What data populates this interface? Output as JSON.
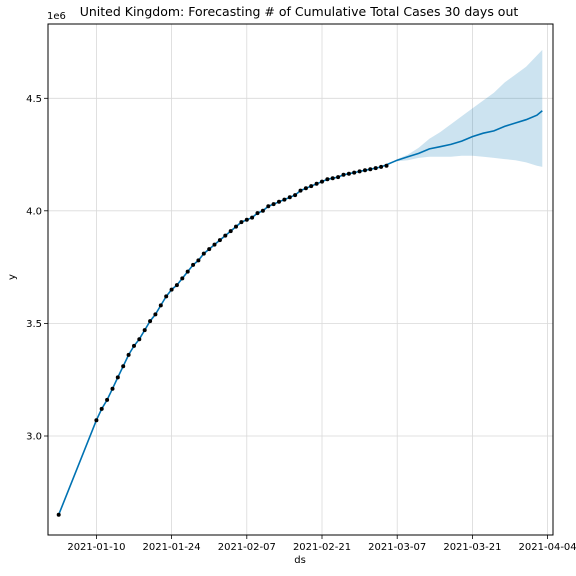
{
  "chart_data": {
    "type": "line",
    "title": "United Kingdom: Forecasting # of Cumulative Total Cases 30 days out",
    "xlabel": "ds",
    "ylabel": "y",
    "y_offset_label": "1e6",
    "grid": true,
    "x_range": [
      "2021-01-01",
      "2021-04-05"
    ],
    "ylim": [
      2.56,
      4.83
    ],
    "x_ticks": [
      "2021-01-10",
      "2021-01-24",
      "2021-02-07",
      "2021-02-21",
      "2021-03-07",
      "2021-03-21",
      "2021-04-04"
    ],
    "y_ticks": [
      {
        "value": 3.0,
        "label": "3.0"
      },
      {
        "value": 3.5,
        "label": "3.5"
      },
      {
        "value": 4.0,
        "label": "4.0"
      },
      {
        "value": 4.5,
        "label": "4.5"
      }
    ],
    "colors": {
      "line": "#0072b2",
      "interval": "#0072b2",
      "points": "#000000",
      "grid": "#d9d9d9"
    },
    "series": [
      {
        "kind": "observed",
        "x": [
          "2021-01-03",
          "2021-01-10",
          "2021-01-11",
          "2021-01-12",
          "2021-01-13",
          "2021-01-14",
          "2021-01-15",
          "2021-01-16",
          "2021-01-17",
          "2021-01-18",
          "2021-01-19",
          "2021-01-20",
          "2021-01-21",
          "2021-01-22",
          "2021-01-23",
          "2021-01-24",
          "2021-01-25",
          "2021-01-26",
          "2021-01-27",
          "2021-01-28",
          "2021-01-29",
          "2021-01-30",
          "2021-01-31",
          "2021-02-01",
          "2021-02-02",
          "2021-02-03",
          "2021-02-04",
          "2021-02-05",
          "2021-02-06",
          "2021-02-07",
          "2021-02-08",
          "2021-02-09",
          "2021-02-10",
          "2021-02-11",
          "2021-02-12",
          "2021-02-13",
          "2021-02-14",
          "2021-02-15",
          "2021-02-16",
          "2021-02-17",
          "2021-02-18",
          "2021-02-19",
          "2021-02-20",
          "2021-02-21",
          "2021-02-22",
          "2021-02-23",
          "2021-02-24",
          "2021-02-25",
          "2021-02-26",
          "2021-02-27",
          "2021-02-28",
          "2021-03-01",
          "2021-03-02",
          "2021-03-03",
          "2021-03-04",
          "2021-03-05"
        ],
        "y": [
          2.65,
          3.07,
          3.12,
          3.16,
          3.21,
          3.26,
          3.31,
          3.36,
          3.4,
          3.43,
          3.47,
          3.51,
          3.54,
          3.58,
          3.62,
          3.65,
          3.67,
          3.7,
          3.73,
          3.76,
          3.78,
          3.81,
          3.83,
          3.85,
          3.87,
          3.89,
          3.91,
          3.93,
          3.95,
          3.96,
          3.97,
          3.99,
          4.0,
          4.02,
          4.03,
          4.04,
          4.05,
          4.06,
          4.07,
          4.09,
          4.1,
          4.11,
          4.12,
          4.13,
          4.14,
          4.145,
          4.15,
          4.16,
          4.165,
          4.17,
          4.175,
          4.18,
          4.185,
          4.19,
          4.195,
          4.2
        ]
      },
      {
        "kind": "forecast",
        "x": [
          "2021-01-03",
          "2021-01-10",
          "2021-01-11",
          "2021-01-12",
          "2021-01-13",
          "2021-01-14",
          "2021-01-15",
          "2021-01-16",
          "2021-01-17",
          "2021-01-18",
          "2021-01-19",
          "2021-01-20",
          "2021-01-21",
          "2021-01-22",
          "2021-01-23",
          "2021-01-24",
          "2021-01-25",
          "2021-01-26",
          "2021-01-27",
          "2021-01-28",
          "2021-01-29",
          "2021-01-30",
          "2021-01-31",
          "2021-02-01",
          "2021-02-02",
          "2021-02-03",
          "2021-02-04",
          "2021-02-05",
          "2021-02-06",
          "2021-02-07",
          "2021-02-08",
          "2021-02-09",
          "2021-02-10",
          "2021-02-11",
          "2021-02-12",
          "2021-02-13",
          "2021-02-14",
          "2021-02-15",
          "2021-02-16",
          "2021-02-17",
          "2021-02-18",
          "2021-02-19",
          "2021-02-20",
          "2021-02-21",
          "2021-02-22",
          "2021-02-23",
          "2021-02-24",
          "2021-02-25",
          "2021-02-26",
          "2021-02-27",
          "2021-02-28",
          "2021-03-01",
          "2021-03-02",
          "2021-03-03",
          "2021-03-04",
          "2021-03-05",
          "2021-03-07",
          "2021-03-09",
          "2021-03-11",
          "2021-03-13",
          "2021-03-15",
          "2021-03-17",
          "2021-03-19",
          "2021-03-21",
          "2021-03-23",
          "2021-03-25",
          "2021-03-27",
          "2021-03-29",
          "2021-03-31",
          "2021-04-02",
          "2021-04-03"
        ],
        "y": [
          2.65,
          3.07,
          3.12,
          3.16,
          3.21,
          3.26,
          3.31,
          3.36,
          3.4,
          3.43,
          3.47,
          3.51,
          3.54,
          3.58,
          3.62,
          3.65,
          3.67,
          3.7,
          3.73,
          3.76,
          3.78,
          3.81,
          3.83,
          3.85,
          3.87,
          3.89,
          3.91,
          3.93,
          3.95,
          3.96,
          3.97,
          3.99,
          4.0,
          4.02,
          4.03,
          4.04,
          4.05,
          4.06,
          4.07,
          4.09,
          4.1,
          4.11,
          4.12,
          4.13,
          4.14,
          4.145,
          4.15,
          4.16,
          4.165,
          4.17,
          4.175,
          4.18,
          4.185,
          4.19,
          4.195,
          4.205,
          4.225,
          4.24,
          4.255,
          4.275,
          4.285,
          4.295,
          4.31,
          4.33,
          4.345,
          4.355,
          4.375,
          4.39,
          4.405,
          4.425,
          4.445
        ]
      }
    ],
    "interval": {
      "x": [
        "2021-03-05",
        "2021-03-07",
        "2021-03-09",
        "2021-03-11",
        "2021-03-13",
        "2021-03-15",
        "2021-03-17",
        "2021-03-19",
        "2021-03-21",
        "2021-03-23",
        "2021-03-25",
        "2021-03-27",
        "2021-03-29",
        "2021-03-31",
        "2021-04-02",
        "2021-04-03"
      ],
      "upper": [
        4.205,
        4.23,
        4.25,
        4.28,
        4.32,
        4.35,
        4.385,
        4.42,
        4.455,
        4.49,
        4.525,
        4.57,
        4.605,
        4.64,
        4.69,
        4.715
      ],
      "lower": [
        4.205,
        4.22,
        4.225,
        4.235,
        4.24,
        4.24,
        4.24,
        4.245,
        4.245,
        4.24,
        4.235,
        4.23,
        4.225,
        4.215,
        4.2,
        4.195
      ]
    }
  }
}
